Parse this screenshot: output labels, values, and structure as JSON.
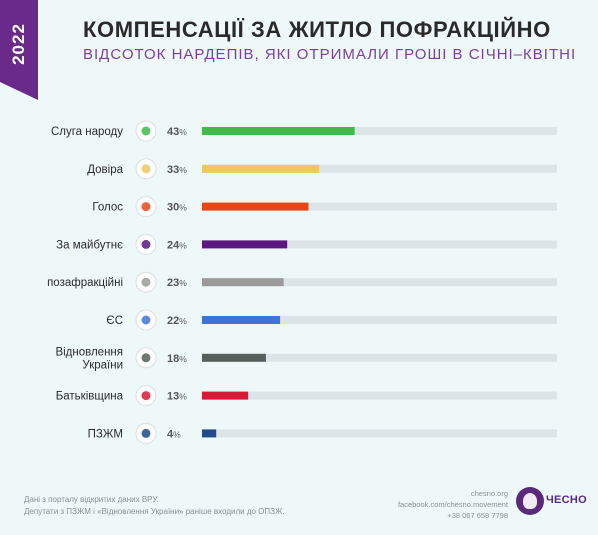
{
  "year": "2022",
  "title": "КОМПЕНСАЦІЇ ЗА ЖИТЛО ПОФРАКЦІЙНО",
  "subtitle": "ВІДСОТОК НАРДЕПІВ, ЯКІ ОТРИМАЛИ ГРОШІ В СІЧНІ–КВІТНІ",
  "chart_data": {
    "type": "bar",
    "orientation": "horizontal",
    "xlim": [
      0,
      100
    ],
    "grid": false,
    "categories": [
      {
        "label": [
          "Слуга народу"
        ],
        "value": 43,
        "color": "#3fba4b",
        "icon": "sluha-narodu-logo-icon"
      },
      {
        "label": [
          "Довіра"
        ],
        "value": 33,
        "color": "#ecc85e",
        "icon": "dovira-logo-icon"
      },
      {
        "label": [
          "Голос"
        ],
        "value": 30,
        "color": "#e84818",
        "icon": "holos-logo-icon"
      },
      {
        "label": [
          "За майбутнє"
        ],
        "value": 24,
        "color": "#5c1880",
        "icon": "za-maibutnie-logo-icon"
      },
      {
        "label": [
          "позафракційні"
        ],
        "value": 23,
        "color": "#9a9a9a",
        "icon": "person-silhouette-icon"
      },
      {
        "label": [
          "ЄС"
        ],
        "value": 22,
        "color": "#3f73d8",
        "icon": "yes-logo-icon"
      },
      {
        "label": [
          "Відновлення",
          "України"
        ],
        "value": 18,
        "color": "#555f5c",
        "icon": "vidnovlennia-ukrainy-logo-icon"
      },
      {
        "label": [
          "Батьківщина"
        ],
        "value": 13,
        "color": "#d81a36",
        "icon": "batkivshchyna-heart-icon"
      },
      {
        "label": [
          "ПЗЖМ"
        ],
        "value": 4,
        "color": "#1f4a8c",
        "icon": "pzzhm-logo-icon"
      }
    ],
    "track_color": "#dde4e7"
  },
  "footer": {
    "line1": "Дані з порталу відкритих даних ВРУ.",
    "line2": "Депутати з ПЗЖМ і «Відновлення України» раніше входили до ОПЗЖ.",
    "site": "chesno.org",
    "facebook": "facebook.com/chesno.movement",
    "phone": "+38 067 658 7798",
    "brand": "ЧЕСНО"
  }
}
